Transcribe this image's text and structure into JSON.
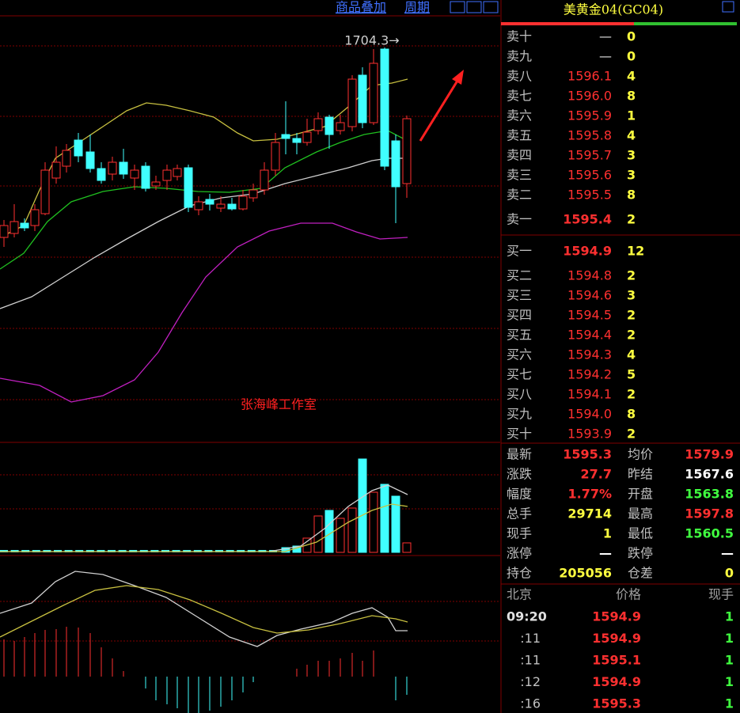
{
  "toolbar": {
    "overlay": "商品叠加",
    "period": "周期"
  },
  "chart": {
    "high_label": "1704.3→",
    "watermark": "张海峰工作室"
  },
  "quote": {
    "title": "美黄金04(GC04)",
    "asks": [
      {
        "label": "卖十",
        "price": "—",
        "volume": "0"
      },
      {
        "label": "卖九",
        "price": "—",
        "volume": "0"
      },
      {
        "label": "卖八",
        "price": "1596.1",
        "volume": "4"
      },
      {
        "label": "卖七",
        "price": "1596.0",
        "volume": "8"
      },
      {
        "label": "卖六",
        "price": "1595.9",
        "volume": "1"
      },
      {
        "label": "卖五",
        "price": "1595.8",
        "volume": "4"
      },
      {
        "label": "卖四",
        "price": "1595.7",
        "volume": "3"
      },
      {
        "label": "卖三",
        "price": "1595.6",
        "volume": "3"
      },
      {
        "label": "卖二",
        "price": "1595.5",
        "volume": "8"
      },
      {
        "label": "卖一",
        "price": "1595.4",
        "volume": "2"
      }
    ],
    "bids": [
      {
        "label": "买一",
        "price": "1594.9",
        "volume": "12"
      },
      {
        "label": "买二",
        "price": "1594.8",
        "volume": "2"
      },
      {
        "label": "买三",
        "price": "1594.6",
        "volume": "3"
      },
      {
        "label": "买四",
        "price": "1594.5",
        "volume": "2"
      },
      {
        "label": "买五",
        "price": "1594.4",
        "volume": "2"
      },
      {
        "label": "买六",
        "price": "1594.3",
        "volume": "4"
      },
      {
        "label": "买七",
        "price": "1594.2",
        "volume": "5"
      },
      {
        "label": "买八",
        "price": "1594.1",
        "volume": "2"
      },
      {
        "label": "买九",
        "price": "1594.0",
        "volume": "8"
      },
      {
        "label": "买十",
        "price": "1593.9",
        "volume": "2"
      }
    ],
    "stats": [
      [
        "最新",
        "1595.3",
        "均价",
        "1579.9"
      ],
      [
        "涨跌",
        "27.7",
        "昨结",
        "1567.6"
      ],
      [
        "幅度",
        "1.77%",
        "开盘",
        "1563.8"
      ],
      [
        "总手",
        "29714",
        "最高",
        "1597.8"
      ],
      [
        "现手",
        "1",
        "最低",
        "1560.5"
      ],
      [
        "涨停",
        "—",
        "跌停",
        "—"
      ],
      [
        "持仓",
        "205056",
        "仓差",
        "0"
      ]
    ],
    "ticks_header": [
      "北京",
      "价格",
      "现手"
    ],
    "ticks": [
      [
        "09:20",
        "1594.9",
        "1"
      ],
      [
        ":11",
        "1594.9",
        "1"
      ],
      [
        ":11",
        "1595.1",
        "1"
      ],
      [
        ":12",
        "1594.9",
        "1"
      ],
      [
        ":16",
        "1595.3",
        "1"
      ]
    ]
  }
}
